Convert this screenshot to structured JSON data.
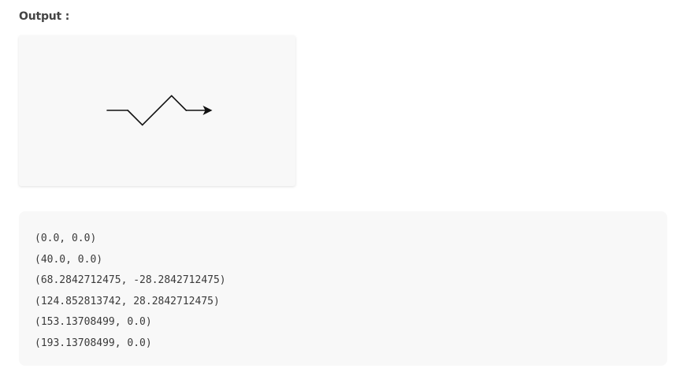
{
  "heading": "Output :",
  "turtle_canvas": {
    "icon": "turtle-arrow-cursor",
    "path_points": [
      [
        0.0,
        0.0
      ],
      [
        40.0,
        0.0
      ],
      [
        68.2842712475,
        -28.2842712475
      ],
      [
        124.852813742,
        28.2842712475
      ],
      [
        153.13708499,
        0.0
      ],
      [
        193.13708499,
        0.0
      ]
    ],
    "line_color": "#111111"
  },
  "console_output": {
    "lines": [
      "(0.0, 0.0)",
      "(40.0, 0.0)",
      "(68.2842712475, -28.2842712475)",
      "(124.852813742, 28.2842712475)",
      "(153.13708499, 0.0)",
      "(193.13708499, 0.0)"
    ]
  }
}
